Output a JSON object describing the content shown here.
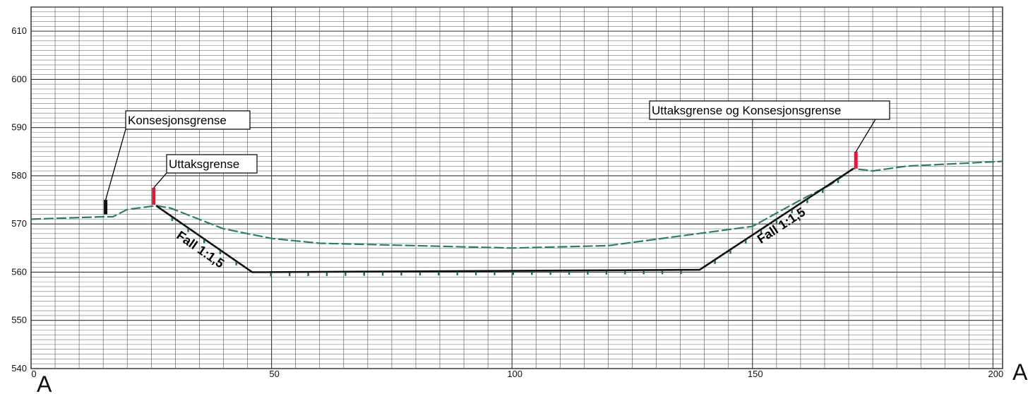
{
  "chart_data": {
    "type": "line",
    "title": "",
    "xlabel": "",
    "ylabel": "",
    "xlim": [
      0,
      202
    ],
    "ylim": [
      540,
      615
    ],
    "x_ticks": [
      "0",
      "50",
      "100",
      "150",
      "200"
    ],
    "y_ticks": [
      "540",
      "550",
      "560",
      "570",
      "580",
      "590",
      "600",
      "610"
    ],
    "grid": true,
    "section_labels": {
      "start": "A",
      "end": "A"
    },
    "series": [
      {
        "role": "terrain",
        "color": "#2e7d6b",
        "points": [
          [
            0,
            571.0
          ],
          [
            15,
            571.5
          ],
          [
            17,
            571.5
          ],
          [
            20,
            573.0
          ],
          [
            26,
            573.8
          ],
          [
            29,
            573.3
          ],
          [
            40,
            569.0
          ],
          [
            50,
            567.0
          ],
          [
            60,
            566.0
          ],
          [
            100,
            565.0
          ],
          [
            120,
            565.5
          ],
          [
            150,
            569.5
          ],
          [
            160,
            575.0
          ],
          [
            166,
            578.0
          ],
          [
            171,
            581.5
          ],
          [
            175,
            581.0
          ],
          [
            182,
            582.0
          ],
          [
            192,
            582.5
          ],
          [
            202,
            583.0
          ]
        ]
      },
      {
        "role": "excavation",
        "color": "#111111",
        "points": [
          [
            26,
            573.8
          ],
          [
            46,
            560.0
          ],
          [
            139,
            560.5
          ],
          [
            171,
            581.5
          ]
        ]
      }
    ],
    "markers": [
      {
        "x": 15.5,
        "y0": 572.0,
        "y1": 575.0,
        "color": "#111111"
      },
      {
        "x": 25.5,
        "y0": 574.0,
        "y1": 577.5,
        "color": "#d81b3c"
      },
      {
        "x": 171.5,
        "y0": 581.5,
        "y1": 585.0,
        "color": "#d81b3c"
      }
    ],
    "annotations": [
      {
        "text": "Konsesjonsgrense",
        "target": [
          15.5,
          575.0
        ]
      },
      {
        "text": "Uttaksgrense",
        "target": [
          25.5,
          577.5
        ]
      },
      {
        "text": "Uttaksgrense og Konsesjonsgrense",
        "target": [
          171.5,
          585.0
        ]
      },
      {
        "text": "Fall 1:1,5",
        "along": [
          [
            26,
            573.8
          ],
          [
            46,
            560.0
          ]
        ]
      },
      {
        "text": "Fall 1:1,5",
        "along": [
          [
            139,
            560.5
          ],
          [
            171,
            581.5
          ]
        ]
      }
    ]
  }
}
